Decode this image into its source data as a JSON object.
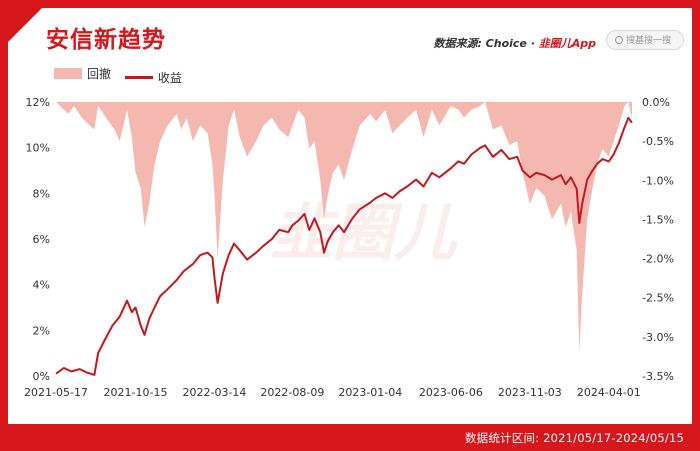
{
  "title": "安信新趋势",
  "source": {
    "prefix": "数据来源: Choice · ",
    "brand": "韭圈儿App"
  },
  "search": {
    "placeholder": "搜基搜一搜",
    "icon": "search-icon"
  },
  "watermark": "韭圈儿",
  "footer": "数据统计区间: 2021/05/17-2024/05/15",
  "colors": {
    "frame": "#d7161c",
    "drawdown_fill": "#f5b8b1",
    "return_line": "#c8161d"
  },
  "chart_data": {
    "type": "line",
    "legend": [
      {
        "name": "回撤",
        "kind": "area"
      },
      {
        "name": "收益",
        "kind": "line"
      }
    ],
    "legend_placement": "top-left",
    "x_ticks": [
      "2021-05-17",
      "2021-10-15",
      "2022-03-14",
      "2022-08-09",
      "2023-01-04",
      "2023-06-06",
      "2023-11-03",
      "2024-04-01"
    ],
    "x_range": [
      "2021-05-17",
      "2024-05-15"
    ],
    "y_left": {
      "ticks": [
        "0%",
        "2%",
        "4%",
        "6%",
        "8%",
        "10%",
        "12%"
      ],
      "range": [
        0,
        12
      ],
      "unit": "%"
    },
    "y_right": {
      "ticks": [
        "0.0%",
        "-0.5%",
        "-1.0%",
        "-1.5%",
        "-2.0%",
        "-2.5%",
        "-3.0%",
        "-3.5%"
      ],
      "range": [
        -3.5,
        0
      ],
      "unit": "%"
    },
    "grid": "none",
    "series": [
      {
        "name": "收益",
        "axis": "left",
        "points": [
          [
            "2021-05-17",
            0.1
          ],
          [
            "2021-06-01",
            0.35
          ],
          [
            "2021-06-15",
            0.2
          ],
          [
            "2021-07-01",
            0.3
          ],
          [
            "2021-07-15",
            0.15
          ],
          [
            "2021-07-29",
            0.05
          ],
          [
            "2021-08-05",
            1.0
          ],
          [
            "2021-08-18",
            1.6
          ],
          [
            "2021-09-01",
            2.2
          ],
          [
            "2021-09-15",
            2.6
          ],
          [
            "2021-09-29",
            3.3
          ],
          [
            "2021-10-08",
            2.8
          ],
          [
            "2021-10-15",
            3.0
          ],
          [
            "2021-10-25",
            2.2
          ],
          [
            "2021-11-01",
            1.8
          ],
          [
            "2021-11-10",
            2.5
          ],
          [
            "2021-11-20",
            3.0
          ],
          [
            "2021-12-01",
            3.5
          ],
          [
            "2021-12-15",
            3.8
          ],
          [
            "2022-01-01",
            4.2
          ],
          [
            "2022-01-15",
            4.6
          ],
          [
            "2022-02-01",
            4.9
          ],
          [
            "2022-02-15",
            5.3
          ],
          [
            "2022-03-01",
            5.4
          ],
          [
            "2022-03-10",
            5.2
          ],
          [
            "2022-03-14",
            4.3
          ],
          [
            "2022-03-20",
            3.2
          ],
          [
            "2022-03-30",
            4.5
          ],
          [
            "2022-04-10",
            5.3
          ],
          [
            "2022-04-20",
            5.8
          ],
          [
            "2022-05-01",
            5.5
          ],
          [
            "2022-05-15",
            5.1
          ],
          [
            "2022-06-01",
            5.4
          ],
          [
            "2022-06-15",
            5.7
          ],
          [
            "2022-07-01",
            6.0
          ],
          [
            "2022-07-15",
            6.4
          ],
          [
            "2022-08-01",
            6.3
          ],
          [
            "2022-08-09",
            6.6
          ],
          [
            "2022-08-20",
            6.8
          ],
          [
            "2022-09-01",
            7.1
          ],
          [
            "2022-09-10",
            6.4
          ],
          [
            "2022-09-20",
            6.9
          ],
          [
            "2022-10-01",
            6.3
          ],
          [
            "2022-10-08",
            5.4
          ],
          [
            "2022-10-15",
            5.9
          ],
          [
            "2022-10-25",
            6.3
          ],
          [
            "2022-11-05",
            6.6
          ],
          [
            "2022-11-15",
            6.3
          ],
          [
            "2022-12-01",
            6.9
          ],
          [
            "2022-12-15",
            7.3
          ],
          [
            "2023-01-04",
            7.6
          ],
          [
            "2023-01-15",
            7.8
          ],
          [
            "2023-02-01",
            8.0
          ],
          [
            "2023-02-15",
            7.8
          ],
          [
            "2023-03-01",
            8.1
          ],
          [
            "2023-03-15",
            8.3
          ],
          [
            "2023-04-01",
            8.6
          ],
          [
            "2023-04-15",
            8.3
          ],
          [
            "2023-05-01",
            8.9
          ],
          [
            "2023-05-15",
            8.7
          ],
          [
            "2023-06-06",
            9.1
          ],
          [
            "2023-06-20",
            9.4
          ],
          [
            "2023-07-01",
            9.3
          ],
          [
            "2023-07-15",
            9.7
          ],
          [
            "2023-08-01",
            10.0
          ],
          [
            "2023-08-10",
            10.1
          ],
          [
            "2023-08-25",
            9.6
          ],
          [
            "2023-09-10",
            9.9
          ],
          [
            "2023-09-25",
            9.5
          ],
          [
            "2023-10-10",
            9.6
          ],
          [
            "2023-10-20",
            9.0
          ],
          [
            "2023-11-03",
            8.7
          ],
          [
            "2023-11-15",
            8.9
          ],
          [
            "2023-12-01",
            8.8
          ],
          [
            "2023-12-15",
            8.6
          ],
          [
            "2024-01-01",
            8.8
          ],
          [
            "2024-01-10",
            8.4
          ],
          [
            "2024-01-20",
            8.7
          ],
          [
            "2024-01-31",
            8.2
          ],
          [
            "2024-02-05",
            6.7
          ],
          [
            "2024-02-10",
            7.5
          ],
          [
            "2024-02-20",
            8.6
          ],
          [
            "2024-03-01",
            9.0
          ],
          [
            "2024-03-10",
            9.3
          ],
          [
            "2024-03-20",
            9.5
          ],
          [
            "2024-04-01",
            9.4
          ],
          [
            "2024-04-10",
            9.7
          ],
          [
            "2024-04-20",
            10.2
          ],
          [
            "2024-05-01",
            10.9
          ],
          [
            "2024-05-08",
            11.3
          ],
          [
            "2024-05-15",
            11.1
          ]
        ]
      },
      {
        "name": "回撤",
        "axis": "right",
        "points": [
          [
            "2021-05-17",
            0.0
          ],
          [
            "2021-06-01",
            -0.1
          ],
          [
            "2021-06-10",
            -0.15
          ],
          [
            "2021-06-20",
            -0.05
          ],
          [
            "2021-07-05",
            -0.2
          ],
          [
            "2021-07-20",
            -0.3
          ],
          [
            "2021-07-29",
            -0.35
          ],
          [
            "2021-08-05",
            -0.05
          ],
          [
            "2021-08-20",
            -0.2
          ],
          [
            "2021-09-05",
            -0.35
          ],
          [
            "2021-09-15",
            -0.5
          ],
          [
            "2021-09-29",
            -0.1
          ],
          [
            "2021-10-08",
            -0.45
          ],
          [
            "2021-10-15",
            -0.9
          ],
          [
            "2021-10-25",
            -1.1
          ],
          [
            "2021-11-01",
            -1.6
          ],
          [
            "2021-11-10",
            -1.3
          ],
          [
            "2021-11-20",
            -0.8
          ],
          [
            "2021-12-01",
            -0.5
          ],
          [
            "2021-12-15",
            -0.3
          ],
          [
            "2022-01-01",
            -0.15
          ],
          [
            "2022-01-10",
            -0.35
          ],
          [
            "2022-01-20",
            -0.2
          ],
          [
            "2022-02-01",
            -0.5
          ],
          [
            "2022-02-15",
            -0.3
          ],
          [
            "2022-03-01",
            -0.4
          ],
          [
            "2022-03-10",
            -0.8
          ],
          [
            "2022-03-14",
            -1.2
          ],
          [
            "2022-03-20",
            -2.0
          ],
          [
            "2022-03-30",
            -1.0
          ],
          [
            "2022-04-10",
            -0.3
          ],
          [
            "2022-04-20",
            -0.1
          ],
          [
            "2022-05-01",
            -0.45
          ],
          [
            "2022-05-15",
            -0.7
          ],
          [
            "2022-06-01",
            -0.5
          ],
          [
            "2022-06-15",
            -0.3
          ],
          [
            "2022-07-01",
            -0.2
          ],
          [
            "2022-07-15",
            -0.35
          ],
          [
            "2022-08-01",
            -0.45
          ],
          [
            "2022-08-09",
            -0.3
          ],
          [
            "2022-08-20",
            -0.1
          ],
          [
            "2022-09-01",
            -0.2
          ],
          [
            "2022-09-10",
            -0.6
          ],
          [
            "2022-09-20",
            -0.5
          ],
          [
            "2022-10-01",
            -1.0
          ],
          [
            "2022-10-08",
            -1.5
          ],
          [
            "2022-10-15",
            -1.2
          ],
          [
            "2022-10-25",
            -0.9
          ],
          [
            "2022-11-05",
            -0.8
          ],
          [
            "2022-11-15",
            -1.0
          ],
          [
            "2022-12-01",
            -0.6
          ],
          [
            "2022-12-15",
            -0.3
          ],
          [
            "2023-01-04",
            -0.15
          ],
          [
            "2023-01-15",
            -0.25
          ],
          [
            "2023-02-01",
            -0.1
          ],
          [
            "2023-02-15",
            -0.4
          ],
          [
            "2023-03-01",
            -0.3
          ],
          [
            "2023-03-15",
            -0.2
          ],
          [
            "2023-04-01",
            -0.1
          ],
          [
            "2023-04-15",
            -0.45
          ],
          [
            "2023-05-01",
            -0.1
          ],
          [
            "2023-05-15",
            -0.3
          ],
          [
            "2023-06-06",
            -0.05
          ],
          [
            "2023-06-20",
            -0.1
          ],
          [
            "2023-07-01",
            -0.2
          ],
          [
            "2023-07-15",
            -0.1
          ],
          [
            "2023-08-01",
            -0.05
          ],
          [
            "2023-08-10",
            -0.0
          ],
          [
            "2023-08-25",
            -0.35
          ],
          [
            "2023-09-10",
            -0.3
          ],
          [
            "2023-09-25",
            -0.55
          ],
          [
            "2023-10-10",
            -0.5
          ],
          [
            "2023-10-20",
            -0.9
          ],
          [
            "2023-11-03",
            -1.3
          ],
          [
            "2023-11-15",
            -1.1
          ],
          [
            "2023-12-01",
            -1.2
          ],
          [
            "2023-12-15",
            -1.5
          ],
          [
            "2024-01-01",
            -1.3
          ],
          [
            "2024-01-10",
            -1.6
          ],
          [
            "2024-01-20",
            -1.4
          ],
          [
            "2024-01-31",
            -1.9
          ],
          [
            "2024-02-05",
            -3.2
          ],
          [
            "2024-02-10",
            -2.5
          ],
          [
            "2024-02-20",
            -1.5
          ],
          [
            "2024-03-01",
            -1.1
          ],
          [
            "2024-03-10",
            -0.8
          ],
          [
            "2024-03-20",
            -0.6
          ],
          [
            "2024-04-01",
            -0.7
          ],
          [
            "2024-04-10",
            -0.5
          ],
          [
            "2024-04-20",
            -0.3
          ],
          [
            "2024-05-01",
            -0.05
          ],
          [
            "2024-05-08",
            0.0
          ],
          [
            "2024-05-15",
            -0.2
          ]
        ]
      }
    ]
  }
}
